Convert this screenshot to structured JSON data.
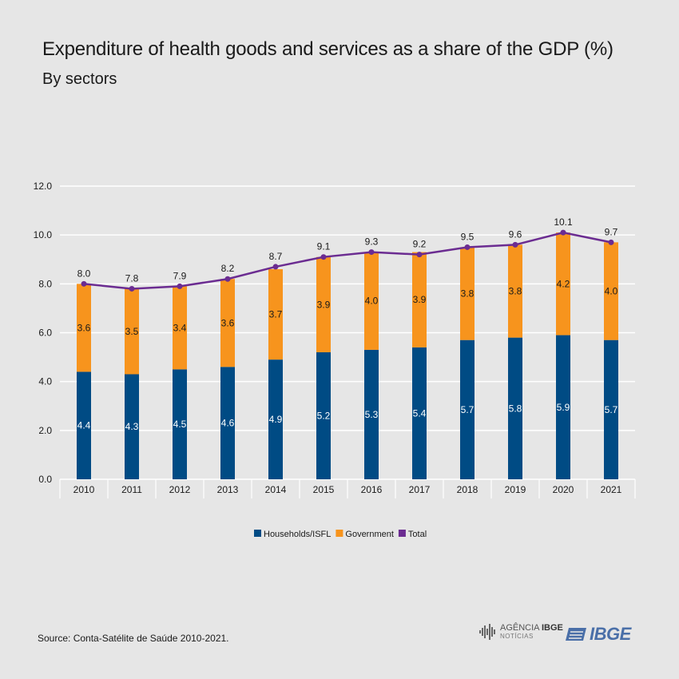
{
  "header": {
    "title": "Expenditure of health goods and services as a share of the GDP (%)",
    "subtitle": "By sectors"
  },
  "footer": {
    "source": "Source: Conta-Satélite de Saúde 2010-2021.",
    "agencia_label_1": "AGÊNCIA",
    "agencia_label_2": "IBGE",
    "agencia_label_3": "NOTÍCIAS",
    "ibge_label": "IBGE"
  },
  "colors": {
    "households": "#004b84",
    "government": "#f7941d",
    "total": "#6b2c91",
    "grid": "#ffffff",
    "background": "#e6e6e6"
  },
  "chart_data": {
    "type": "bar",
    "stacked": true,
    "title": "Expenditure of health goods and services as a share of the GDP (%)",
    "subtitle": "By sectors",
    "categories": [
      "2010",
      "2011",
      "2012",
      "2013",
      "2014",
      "2015",
      "2016",
      "2017",
      "2018",
      "2019",
      "2020",
      "2021"
    ],
    "series": [
      {
        "name": "Households/ISFL",
        "type": "bar",
        "color": "#004b84",
        "values": [
          4.4,
          4.3,
          4.5,
          4.6,
          4.9,
          5.2,
          5.3,
          5.4,
          5.7,
          5.8,
          5.9,
          5.7
        ]
      },
      {
        "name": "Government",
        "type": "bar",
        "color": "#f7941d",
        "values": [
          3.6,
          3.5,
          3.4,
          3.6,
          3.7,
          3.9,
          4.0,
          3.9,
          3.8,
          3.8,
          4.2,
          4.0
        ]
      },
      {
        "name": "Total",
        "type": "line",
        "color": "#6b2c91",
        "values": [
          8.0,
          7.8,
          7.9,
          8.2,
          8.7,
          9.1,
          9.3,
          9.2,
          9.5,
          9.6,
          10.1,
          9.7
        ]
      }
    ],
    "y_ticks": [
      "0.0",
      "2.0",
      "4.0",
      "6.0",
      "8.0",
      "10.0",
      "12.0"
    ],
    "ylim": [
      0,
      12
    ],
    "grid": true,
    "legend": "bottom-center"
  }
}
